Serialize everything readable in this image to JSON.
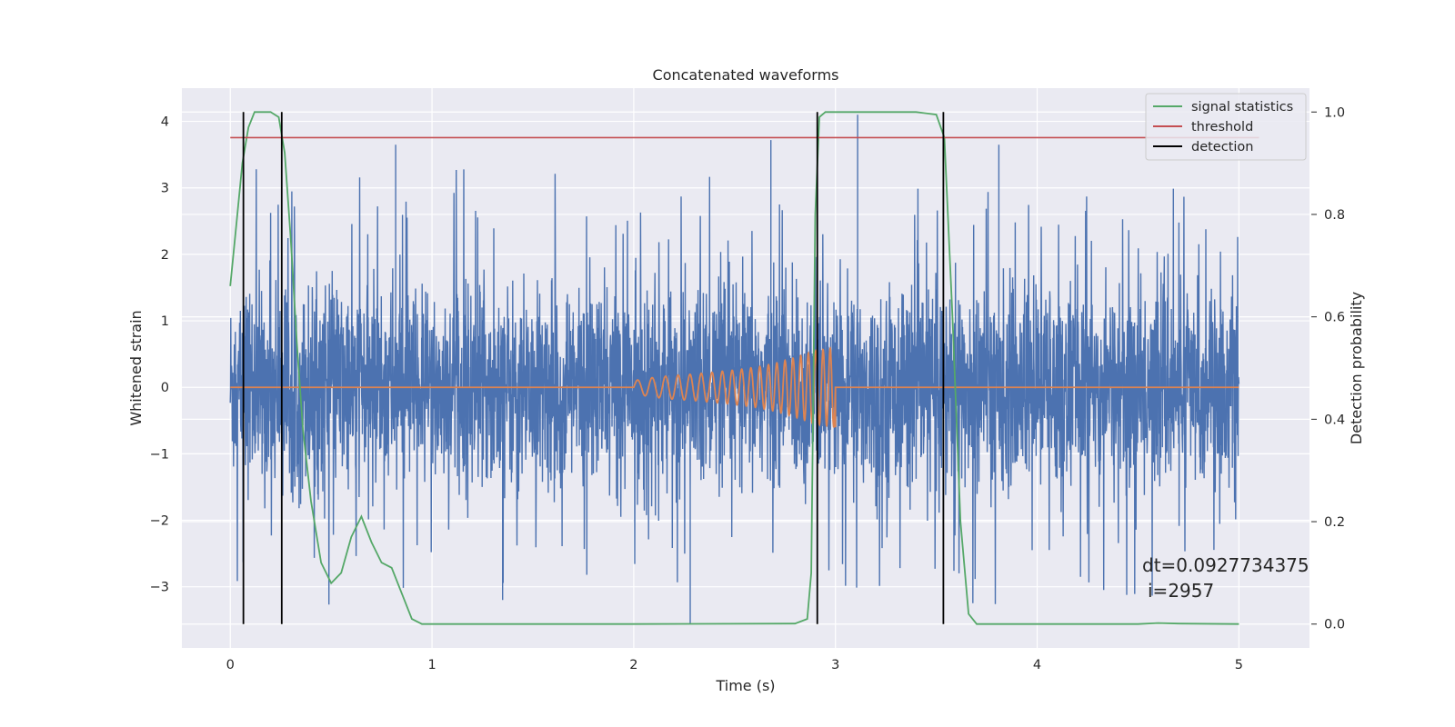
{
  "chart_data": {
    "type": "line",
    "title": "Concatenated waveforms",
    "xlabel": "Time (s)",
    "ylabel": "Whitened strain",
    "y2label": "Detection probability",
    "xlim": [
      -0.24,
      5.35
    ],
    "ylim": [
      -3.92,
      4.5
    ],
    "y2lim": [
      -0.0466,
      1.0466
    ],
    "x_ticks": [
      0,
      1,
      2,
      3,
      4,
      5
    ],
    "x_tick_labels": [
      "0",
      "1",
      "2",
      "3",
      "4",
      "5"
    ],
    "y_ticks": [
      -3,
      -2,
      -1,
      0,
      1,
      2,
      3,
      4
    ],
    "y_tick_labels": [
      "−3",
      "−2",
      "−1",
      "0",
      "1",
      "2",
      "3",
      "4"
    ],
    "y2_ticks": [
      0.0,
      0.2,
      0.4,
      0.6,
      0.8,
      1.0
    ],
    "y2_tick_labels": [
      "0.0",
      "0.2",
      "0.4",
      "0.6",
      "0.8",
      "1.0"
    ],
    "grid": true,
    "legend_position": "top-right",
    "legend": [
      {
        "label": "signal statistics",
        "color": "#55a868"
      },
      {
        "label": "threshold",
        "color": "#c44e52"
      },
      {
        "label": "detection",
        "color": "#000000"
      }
    ],
    "series": [
      {
        "key": "noise",
        "axis": "left",
        "color": "#4c72b0",
        "x_range": [
          0,
          5
        ],
        "description_values": {
          "typical_band": [
            -1.3,
            1.3
          ],
          "max": 4.1,
          "min": -3.55
        }
      },
      {
        "key": "waveform",
        "axis": "left",
        "color": "#dd8452",
        "x": [
          0,
          2.0,
          2.1,
          2.2,
          2.3,
          2.4,
          2.5,
          2.6,
          2.7,
          2.8,
          2.9,
          3.0,
          3.01,
          5.0
        ],
        "amplitude": [
          0,
          0.1,
          0.15,
          0.18,
          0.2,
          0.23,
          0.26,
          0.3,
          0.36,
          0.45,
          0.55,
          0.6,
          0,
          0
        ]
      },
      {
        "key": "signal_statistics",
        "name": "signal statistics",
        "axis": "right",
        "color": "#55a868",
        "x": [
          0,
          0.03,
          0.06,
          0.09,
          0.12,
          0.15,
          0.2,
          0.24,
          0.27,
          0.3,
          0.33,
          0.36,
          0.4,
          0.45,
          0.5,
          0.55,
          0.6,
          0.65,
          0.7,
          0.75,
          0.8,
          0.85,
          0.9,
          0.95,
          1.0,
          2.0,
          2.8,
          2.86,
          2.88,
          2.9,
          2.92,
          2.95,
          3.0,
          3.2,
          3.4,
          3.5,
          3.54,
          3.58,
          3.62,
          3.66,
          3.7,
          3.8,
          4.5,
          4.6,
          4.7,
          5.0
        ],
        "y": [
          0.66,
          0.78,
          0.9,
          0.97,
          1.0,
          1.0,
          1.0,
          0.99,
          0.92,
          0.75,
          0.55,
          0.38,
          0.24,
          0.12,
          0.08,
          0.1,
          0.17,
          0.21,
          0.16,
          0.12,
          0.11,
          0.06,
          0.01,
          0.0,
          0.0,
          0.0,
          0.001,
          0.01,
          0.1,
          0.8,
          0.99,
          1.0,
          1.0,
          1.0,
          1.0,
          0.995,
          0.95,
          0.6,
          0.2,
          0.02,
          0.0,
          0.0,
          0.0,
          0.002,
          0.001,
          0.0
        ]
      },
      {
        "key": "threshold",
        "name": "threshold",
        "axis": "right",
        "color": "#c44e52",
        "x": [
          0,
          5.1
        ],
        "y": [
          0.95,
          0.95
        ]
      },
      {
        "key": "detection",
        "name": "detection",
        "axis": "right",
        "color": "#000000",
        "vlines_x": [
          0.065,
          0.255,
          2.91,
          3.535
        ]
      }
    ],
    "annotations": [
      "dt=0.0927734375",
      "i=2957"
    ]
  }
}
